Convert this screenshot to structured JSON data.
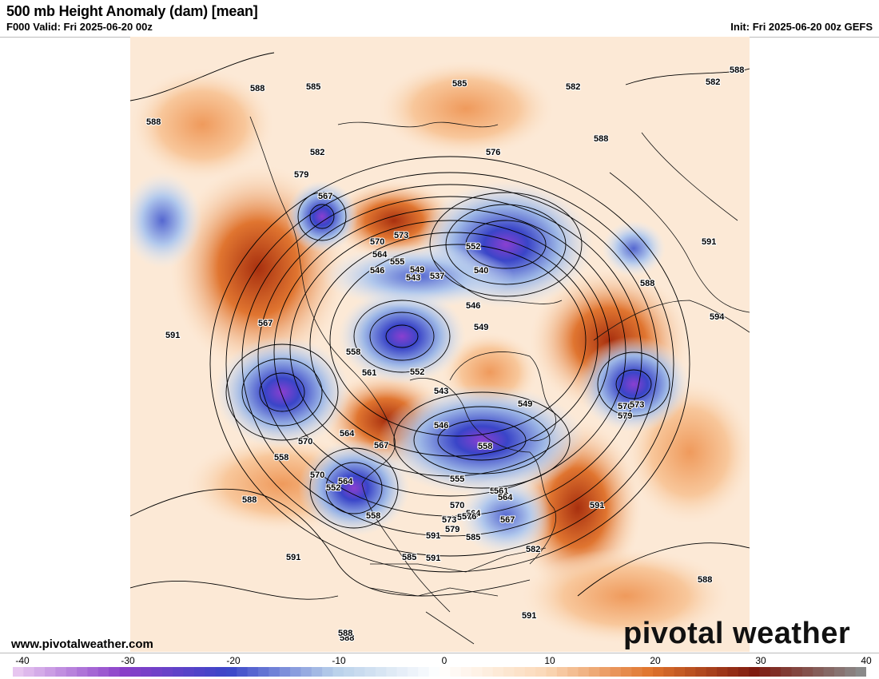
{
  "header": {
    "title": "500 mb Height Anomaly (dam) [mean]",
    "valid": "F000 Valid: Fri 2025-06-20 00z",
    "init": "Init: Fri 2025-06-20 00z GEFS"
  },
  "footer": {
    "url": "www.pivotalweather.com",
    "brand_left": "pivo",
    "brand_right": "tal weather"
  },
  "colorbar": {
    "min": -40,
    "max": 40,
    "ticks": [
      "-40",
      "-30",
      "-20",
      "-10",
      "0",
      "10",
      "20",
      "30",
      "40"
    ],
    "colors": {
      "neg_far": "#e7c6f0",
      "neg_strong": "#8a3fc8",
      "neg_mid": "#3a45c8",
      "neg_weak": "#b8d0ea",
      "neutral": "#ffffff",
      "pos_weak": "#fbd9b8",
      "pos_mid": "#e0742c",
      "pos_strong": "#7e1a10",
      "pos_far": "#8a8a8a"
    }
  },
  "map": {
    "ocean_color": "#fdebd9",
    "warm_color": "#f2a266",
    "hot_color": "#c8501d",
    "cool_color": "#aec6ea",
    "cold_color": "#3b49c9",
    "deep_color": "#8b47d6",
    "anomalies": [
      {
        "kind": "cold",
        "label": "549",
        "strength": 2
      },
      {
        "kind": "cold",
        "label": "540",
        "strength": 3
      },
      {
        "kind": "cold",
        "label": "546",
        "strength": 3
      },
      {
        "kind": "cold",
        "label": "552",
        "strength": 3
      },
      {
        "kind": "cold",
        "label": "543",
        "strength": 3
      },
      {
        "kind": "cold",
        "label": "558",
        "strength": 3
      },
      {
        "kind": "cold",
        "label": "573",
        "strength": 2
      },
      {
        "kind": "cold",
        "label": "567",
        "strength": 2
      },
      {
        "kind": "warm",
        "label": "594",
        "strength": 2
      },
      {
        "kind": "warm",
        "label": "576",
        "strength": 2
      },
      {
        "kind": "warm",
        "label": "573",
        "strength": 2
      },
      {
        "kind": "warm",
        "label": "585",
        "strength": 2
      }
    ],
    "contour_labels": [
      "588",
      "585",
      "588",
      "588",
      "585",
      "582",
      "588",
      "582",
      "576",
      "579",
      "567",
      "564",
      "573",
      "570",
      "567",
      "561",
      "558",
      "555",
      "549",
      "546",
      "543",
      "540",
      "537",
      "552",
      "546",
      "549",
      "552",
      "549",
      "543",
      "546",
      "558",
      "561",
      "552",
      "564",
      "570",
      "567",
      "576",
      "573",
      "579",
      "570",
      "576",
      "573",
      "582",
      "585",
      "591",
      "594",
      "588",
      "591",
      "588",
      "591",
      "591",
      "591",
      "588",
      "591",
      "588",
      "564",
      "558",
      "564",
      "555",
      "558",
      "561",
      "564",
      "567",
      "570",
      "573",
      "576",
      "579",
      "588",
      "585",
      "591",
      "582"
    ]
  }
}
